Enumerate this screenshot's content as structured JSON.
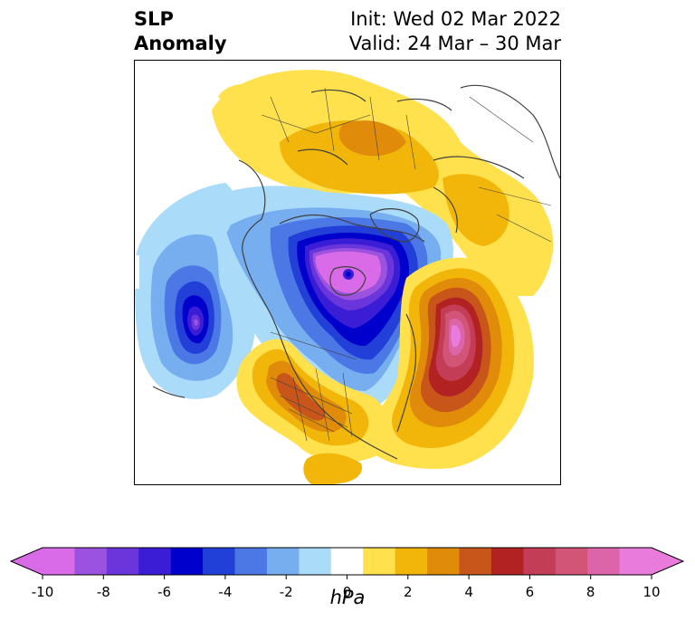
{
  "title": {
    "left_line1": "SLP",
    "left_line2": "Anomaly",
    "right_line1": "Init: Wed 02 Mar 2022",
    "right_line2": "Valid: 24 Mar – 30 Mar"
  },
  "colorbar": {
    "unit": "hPa",
    "ticks": [
      "-10",
      "-8",
      "-6",
      "-4",
      "-2",
      "0",
      "2",
      "4",
      "6",
      "8",
      "10"
    ],
    "levels": [
      -10,
      -9,
      -8,
      -7,
      -6,
      -5,
      -4,
      -3,
      -2,
      -1,
      1,
      2,
      3,
      4,
      5,
      6,
      7,
      8,
      9,
      10
    ],
    "colors": [
      "#d96be8",
      "#9b52de",
      "#6a35db",
      "#3b1dd6",
      "#0000cc",
      "#2240d8",
      "#4c78e6",
      "#76aef0",
      "#aadcfa",
      "#ffffff",
      "#ffe04d",
      "#f2b60a",
      "#e08c0a",
      "#c8561a",
      "#b22222",
      "#c23d55",
      "#d25577",
      "#db65a8",
      "#e87bdc"
    ],
    "under_color": "#d96be8",
    "over_color": "#e87bdc"
  },
  "map": {
    "projection": "polar stereographic",
    "features": {
      "low_arctic": "negative SLP anomaly centered over Hudson Bay / Canadian Arctic (< -10 hPa)",
      "low_pacific": "negative SLP anomaly over the northeast Pacific (~ -9 hPa)",
      "high_atlantic": "positive SLP anomaly over the North Atlantic (~ +9 hPa)",
      "high_central_us": "positive SLP anomaly over western / central United States (~ +4 hPa)",
      "high_eurasia": "positive SLP anomaly over northern Eurasia (~ +3 hPa)"
    }
  }
}
